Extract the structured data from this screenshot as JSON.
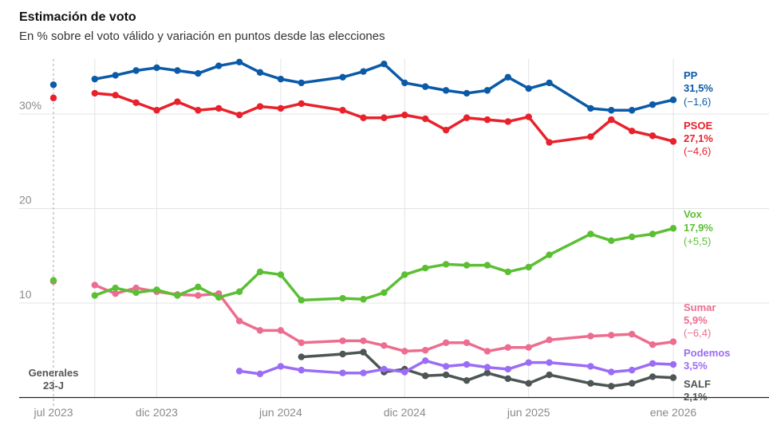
{
  "chart_data": {
    "type": "line",
    "title": "Estimación de voto",
    "subtitle": "En % sobre el voto válido y variación en puntos desde las elecciones",
    "ylim": [
      0,
      35
    ],
    "yticks": [
      {
        "value": 10,
        "label": "10"
      },
      {
        "value": 20,
        "label": "20"
      },
      {
        "value": 30,
        "label": "30%"
      }
    ],
    "xticks": [
      {
        "date": "2023-07",
        "label": "jul 2023"
      },
      {
        "date": "2023-12",
        "label": "dic 2023"
      },
      {
        "date": "2024-06",
        "label": "jun 2024"
      },
      {
        "date": "2024-12",
        "label": "dic 2024"
      },
      {
        "date": "2025-06",
        "label": "jun 2025"
      },
      {
        "date": "2026-01",
        "label": "ene 2026"
      }
    ],
    "grid": true,
    "election": {
      "date": "2023-07",
      "label_line1": "Generales",
      "label_line2": "23-J"
    },
    "x": [
      "2023-09",
      "2023-10",
      "2023-11",
      "2023-12",
      "2024-01",
      "2024-02",
      "2024-03",
      "2024-04",
      "2024-05",
      "2024-06",
      "2024-07",
      "2024-09",
      "2024-10",
      "2024-11",
      "2024-12",
      "2025-01",
      "2025-02",
      "2025-03",
      "2025-04",
      "2025-05",
      "2025-06",
      "2025-07",
      "2025-09",
      "2025-10",
      "2025-11",
      "2025-12",
      "2026-01"
    ],
    "series": [
      {
        "key": "pp",
        "name": "PP",
        "color": "#0b5aa8",
        "value_label": "31,5%",
        "change_label": "(−1,6)",
        "election_value": 33.1,
        "values": [
          33.7,
          34.1,
          34.6,
          34.9,
          34.6,
          34.3,
          35.1,
          35.5,
          34.4,
          33.7,
          33.3,
          33.9,
          34.5,
          35.3,
          33.3,
          32.9,
          32.5,
          32.2,
          32.5,
          33.9,
          32.7,
          33.3,
          30.6,
          30.4,
          30.4,
          31.0,
          31.5
        ]
      },
      {
        "key": "psoe",
        "name": "PSOE",
        "color": "#e8212b",
        "value_label": "27,1%",
        "change_label": "(−4,6)",
        "election_value": 31.7,
        "values": [
          32.2,
          32.0,
          31.2,
          30.4,
          31.3,
          30.4,
          30.6,
          29.9,
          30.8,
          30.6,
          31.1,
          30.4,
          29.6,
          29.6,
          29.9,
          29.5,
          28.3,
          29.6,
          29.4,
          29.2,
          29.7,
          27.0,
          27.6,
          29.4,
          28.2,
          27.7,
          27.1
        ]
      },
      {
        "key": "vox",
        "name": "Vox",
        "color": "#5bbf34",
        "value_label": "17,9%",
        "change_label": "(+5,5)",
        "election_value": 12.4,
        "values": [
          10.8,
          11.6,
          11.1,
          11.4,
          10.8,
          11.7,
          10.6,
          11.2,
          13.3,
          13.0,
          10.3,
          10.5,
          10.4,
          11.1,
          13.0,
          13.7,
          14.1,
          14.0,
          14.0,
          13.3,
          13.8,
          15.1,
          17.3,
          16.6,
          17.0,
          17.3,
          17.9
        ]
      },
      {
        "key": "sumar",
        "name": "Sumar",
        "color": "#ec6d8f",
        "value_label": "5,9%",
        "change_label": "(−6,4)",
        "election_value": 12.3,
        "values": [
          11.9,
          11.0,
          11.6,
          11.2,
          10.9,
          10.8,
          11.0,
          8.1,
          7.1,
          7.1,
          5.8,
          6.0,
          6.0,
          5.5,
          4.9,
          5.0,
          5.8,
          5.8,
          4.9,
          5.3,
          5.3,
          6.1,
          6.5,
          6.6,
          6.7,
          5.6,
          5.9
        ]
      },
      {
        "key": "podemos",
        "name": "Podemos",
        "color": "#9b6cf5",
        "value_label": "3,5%",
        "values": [
          null,
          null,
          null,
          null,
          null,
          null,
          null,
          2.8,
          2.5,
          3.3,
          2.9,
          2.6,
          2.6,
          3.0,
          2.7,
          3.9,
          3.3,
          3.5,
          3.2,
          3.0,
          3.7,
          3.7,
          3.3,
          2.7,
          2.9,
          3.6,
          3.5
        ]
      },
      {
        "key": "salf",
        "name": "SALF",
        "color": "#4d5555",
        "value_label": "2,1%",
        "values": [
          null,
          null,
          null,
          null,
          null,
          null,
          null,
          null,
          null,
          null,
          4.3,
          4.6,
          4.8,
          2.7,
          3.0,
          2.3,
          2.4,
          1.8,
          2.6,
          2.0,
          1.5,
          2.4,
          1.5,
          1.2,
          1.5,
          2.2,
          2.1
        ]
      }
    ]
  }
}
